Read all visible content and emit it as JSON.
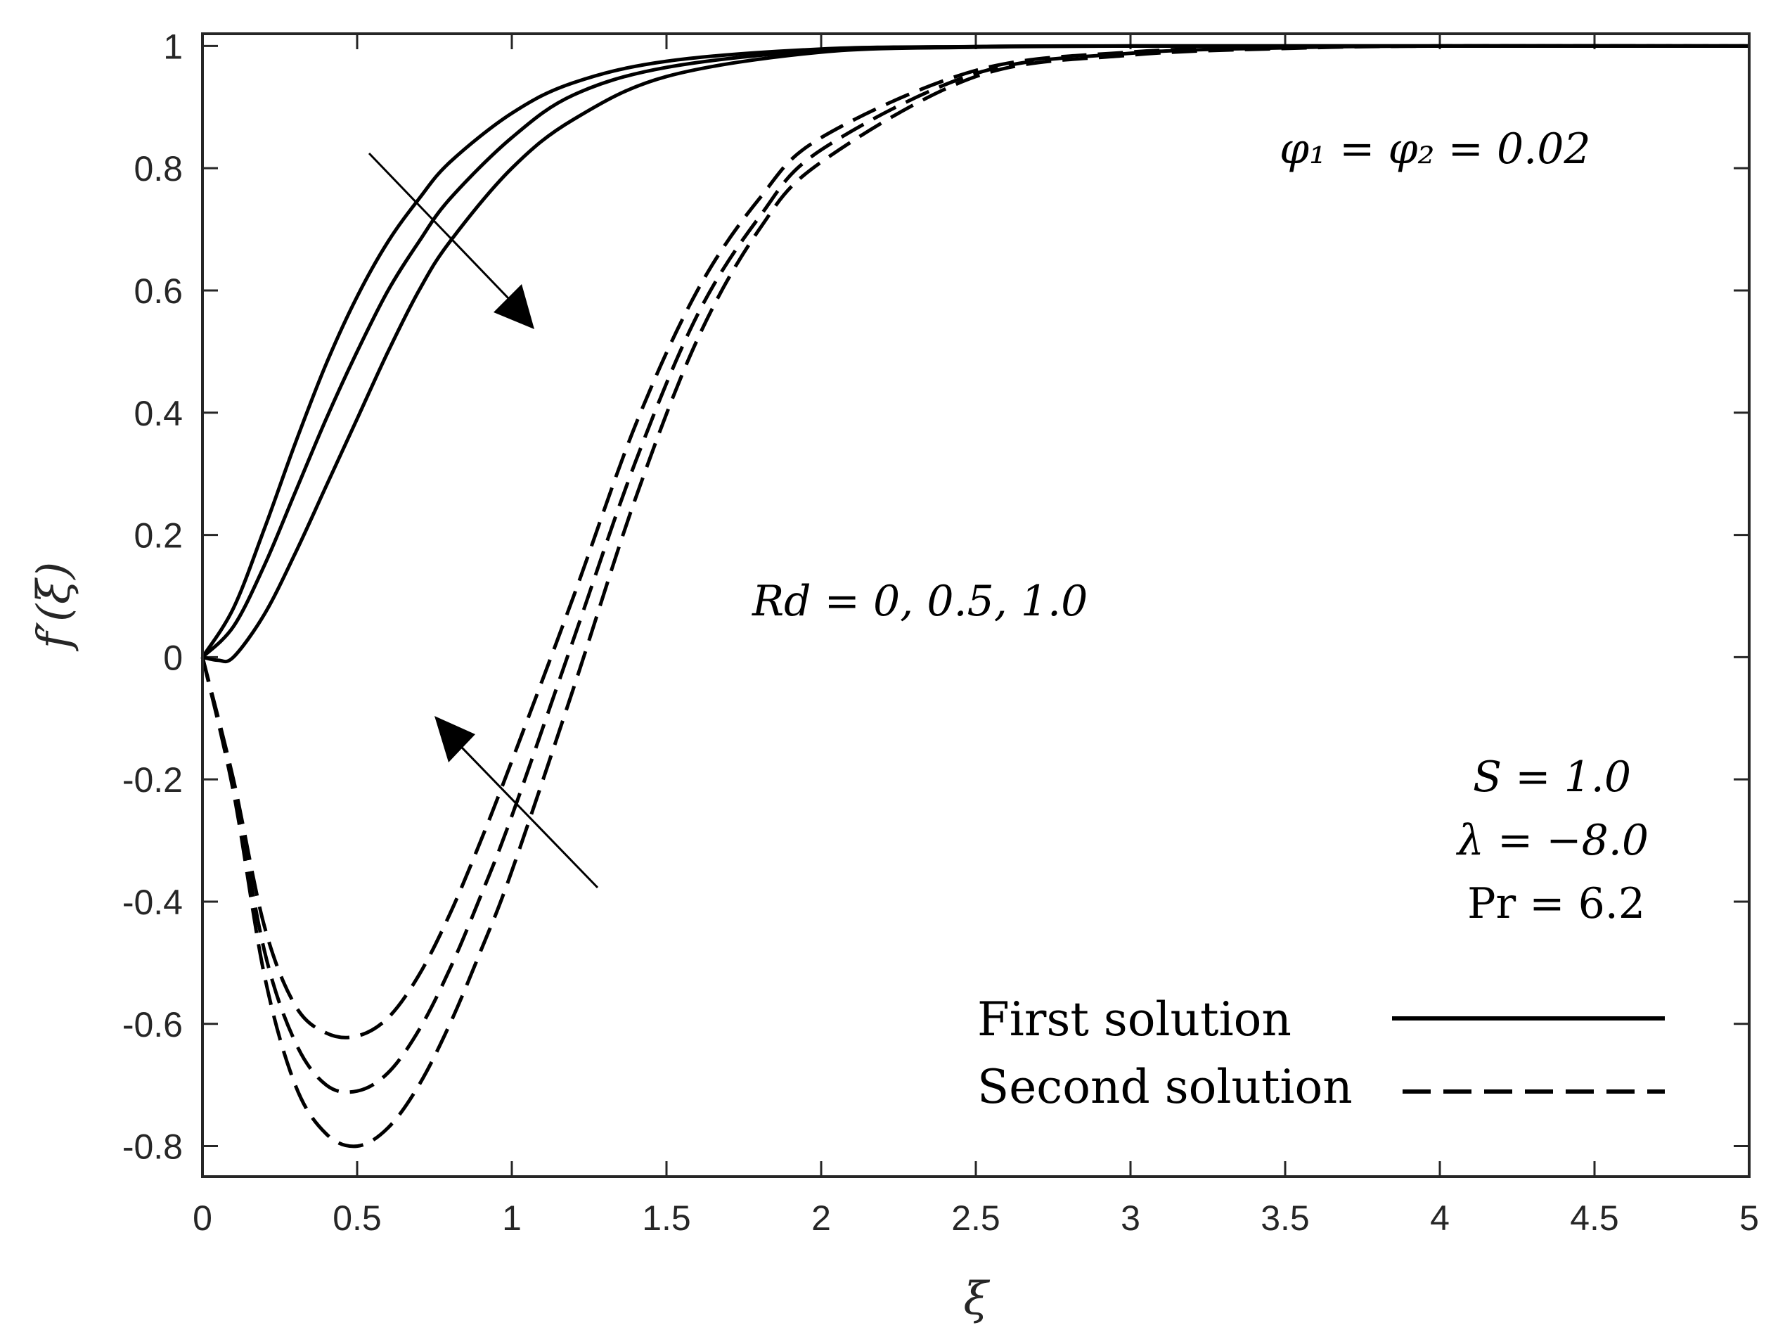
{
  "chart_data": {
    "type": "line",
    "xlabel": "ξ",
    "ylabel": "f′(ξ)",
    "xlim": [
      0,
      5
    ],
    "ylim": [
      -0.85,
      1.02
    ],
    "x_ticks": [
      0,
      0.5,
      1,
      1.5,
      2,
      2.5,
      3,
      3.5,
      4,
      4.5,
      5
    ],
    "x_tick_labels": [
      "0",
      "0.5",
      "1",
      "1.5",
      "2",
      "2.5",
      "3",
      "3.5",
      "4",
      "4.5",
      "5"
    ],
    "y_ticks": [
      1,
      0.8,
      0.6,
      0.4,
      0.2,
      0,
      -0.2,
      -0.4,
      -0.6,
      -0.8
    ],
    "y_tick_labels": [
      "1",
      "0.8",
      "0.6",
      "0.4",
      "0.2",
      "0",
      "-0.2",
      "-0.4",
      "-0.6",
      "-0.8"
    ],
    "grid": false,
    "legend_position": "bottom-right",
    "legend": [
      {
        "label": "First solution",
        "style": "solid"
      },
      {
        "label": "Second solution",
        "style": "dashed"
      }
    ],
    "annotations": {
      "phi": "φ₁ = φ₂ = 0.02",
      "rd": "Rd = 0, 0.5, 1.0",
      "s": "S = 1.0",
      "lambda": "λ = −8.0",
      "pr": "Pr = 6.2"
    },
    "series": [
      {
        "name": "First solution, Rd = 0",
        "style": "solid",
        "x": [
          0,
          0.1,
          0.2,
          0.3,
          0.4,
          0.5,
          0.6,
          0.7,
          0.8,
          1.0,
          1.2,
          1.5,
          2.0,
          2.5,
          3.0,
          4.0,
          5.0
        ],
        "y": [
          0,
          0.08,
          0.21,
          0.35,
          0.48,
          0.59,
          0.68,
          0.75,
          0.81,
          0.89,
          0.94,
          0.975,
          0.995,
          0.999,
          1.0,
          1.0,
          1.0
        ]
      },
      {
        "name": "First solution, Rd = 0.5",
        "style": "solid",
        "x": [
          0,
          0.1,
          0.2,
          0.3,
          0.4,
          0.5,
          0.6,
          0.7,
          0.8,
          1.0,
          1.2,
          1.5,
          2.0,
          2.5,
          3.0,
          4.0,
          5.0
        ],
        "y": [
          0,
          0.05,
          0.15,
          0.27,
          0.39,
          0.5,
          0.6,
          0.68,
          0.75,
          0.85,
          0.92,
          0.965,
          0.993,
          0.999,
          1.0,
          1.0,
          1.0
        ]
      },
      {
        "name": "First solution, Rd = 1.0",
        "style": "solid",
        "x": [
          0,
          0.05,
          0.1,
          0.2,
          0.3,
          0.4,
          0.5,
          0.6,
          0.7,
          0.8,
          1.0,
          1.2,
          1.5,
          2.0,
          2.5,
          3.0,
          4.0,
          5.0
        ],
        "y": [
          0,
          -0.005,
          0.0,
          0.07,
          0.17,
          0.28,
          0.39,
          0.5,
          0.6,
          0.68,
          0.8,
          0.88,
          0.95,
          0.99,
          0.998,
          1.0,
          1.0,
          1.0
        ]
      },
      {
        "name": "Second solution, Rd = 0",
        "style": "dashed",
        "x": [
          0,
          0.1,
          0.2,
          0.3,
          0.4,
          0.5,
          0.6,
          0.7,
          0.8,
          0.9,
          1.0,
          1.2,
          1.4,
          1.6,
          1.8,
          2.0,
          2.5,
          3.0,
          3.5,
          4.0,
          5.0
        ],
        "y": [
          0,
          -0.2,
          -0.44,
          -0.57,
          -0.615,
          -0.62,
          -0.59,
          -0.52,
          -0.42,
          -0.3,
          -0.17,
          0.1,
          0.38,
          0.6,
          0.75,
          0.85,
          0.96,
          0.99,
          0.998,
          1.0,
          1.0
        ]
      },
      {
        "name": "Second solution, Rd = 0.5",
        "style": "dashed",
        "x": [
          0,
          0.1,
          0.2,
          0.3,
          0.4,
          0.5,
          0.6,
          0.7,
          0.8,
          0.9,
          1.0,
          1.2,
          1.4,
          1.6,
          1.8,
          2.0,
          2.5,
          3.0,
          3.5,
          4.0,
          5.0
        ],
        "y": [
          0,
          -0.21,
          -0.48,
          -0.63,
          -0.7,
          -0.71,
          -0.68,
          -0.61,
          -0.51,
          -0.39,
          -0.26,
          0.03,
          0.32,
          0.56,
          0.72,
          0.83,
          0.955,
          0.988,
          0.997,
          1.0,
          1.0
        ]
      },
      {
        "name": "Second solution, Rd = 1.0",
        "style": "dashed",
        "x": [
          0,
          0.1,
          0.2,
          0.3,
          0.4,
          0.5,
          0.6,
          0.7,
          0.8,
          0.9,
          1.0,
          1.2,
          1.4,
          1.6,
          1.8,
          2.0,
          2.5,
          3.0,
          3.5,
          4.0,
          5.0
        ],
        "y": [
          0,
          -0.22,
          -0.52,
          -0.7,
          -0.78,
          -0.8,
          -0.77,
          -0.7,
          -0.6,
          -0.48,
          -0.35,
          -0.05,
          0.26,
          0.52,
          0.7,
          0.81,
          0.95,
          0.985,
          0.996,
          1.0,
          1.0
        ]
      }
    ]
  }
}
